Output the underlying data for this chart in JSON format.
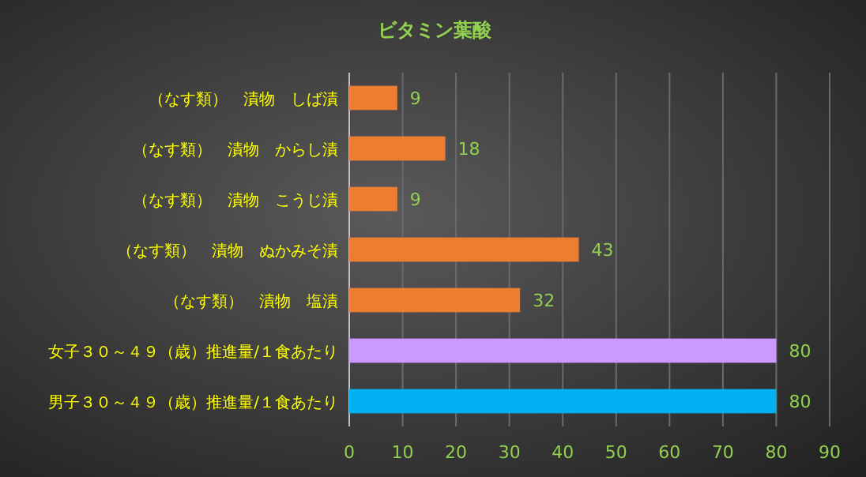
{
  "chart_data": {
    "type": "bar",
    "orientation": "horizontal",
    "title": "ビタミン葉酸",
    "categories": [
      "（なす類）　漬物　しば漬",
      "（なす類）　漬物　からし漬",
      "（なす類）　漬物　こうじ漬",
      "（なす類）　漬物　ぬかみそ漬",
      "（なす類）　漬物　塩漬",
      "女子３０～４９（歳）推進量/１食あたり",
      "男子３０～４９（歳）推進量/１食あたり"
    ],
    "values": [
      9,
      18,
      9,
      43,
      32,
      80,
      80
    ],
    "colors": [
      "#ed7d31",
      "#ed7d31",
      "#ed7d31",
      "#ed7d31",
      "#ed7d31",
      "#cc99ff",
      "#00b0f0"
    ],
    "xlim": [
      0,
      90
    ],
    "xticks": [
      0,
      10,
      20,
      30,
      40,
      50,
      60,
      70,
      80,
      90
    ],
    "grid": "x",
    "data_labels": true
  }
}
